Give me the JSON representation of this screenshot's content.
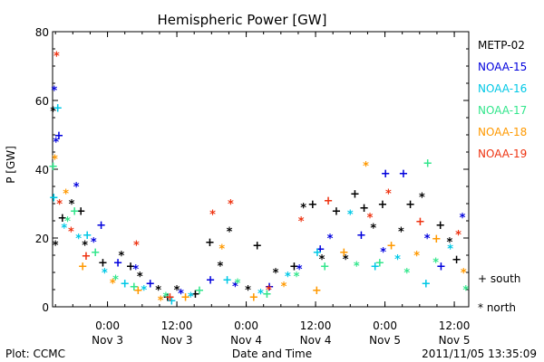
{
  "chart_data": {
    "type": "scatter",
    "title": "Hemispheric Power [GW]",
    "ylabel": "P [GW]",
    "xlabel": "Date and Time",
    "ylim": [
      0,
      80
    ],
    "yticks": [
      0,
      20,
      40,
      60,
      80
    ],
    "xlim": [
      "2011-11-02 14:30",
      "2011-11-05 14:30"
    ],
    "xticks": [
      {
        "time": "2011-11-03 00:00",
        "line1": "0:00",
        "line2": "Nov 3"
      },
      {
        "time": "2011-11-03 12:00",
        "line1": "12:00",
        "line2": "Nov 3"
      },
      {
        "time": "2011-11-04 00:00",
        "line1": "0:00",
        "line2": "Nov 4"
      },
      {
        "time": "2011-11-04 12:00",
        "line1": "12:00",
        "line2": "Nov 4"
      },
      {
        "time": "2011-11-05 00:00",
        "line1": "0:00",
        "line2": "Nov 5"
      },
      {
        "time": "2011-11-05 12:00",
        "line1": "12:00",
        "line2": "Nov 5"
      }
    ],
    "series": [
      {
        "name": "METP-02",
        "color": "#000000",
        "points": [
          {
            "x": "2011-11-02 14:36",
            "y": 57,
            "hemi": "north"
          },
          {
            "x": "2011-11-02 15:00",
            "y": 18,
            "hemi": "north"
          },
          {
            "x": "2011-11-02 16:12",
            "y": 26,
            "hemi": "south"
          },
          {
            "x": "2011-11-02 17:48",
            "y": 30,
            "hemi": "north"
          },
          {
            "x": "2011-11-02 19:24",
            "y": 28,
            "hemi": "south"
          },
          {
            "x": "2011-11-02 20:06",
            "y": 18,
            "hemi": "north"
          },
          {
            "x": "2011-11-02 23:12",
            "y": 13,
            "hemi": "south"
          },
          {
            "x": "2011-11-03 02:24",
            "y": 15,
            "hemi": "north"
          },
          {
            "x": "2011-11-03 04:00",
            "y": 12,
            "hemi": "south"
          },
          {
            "x": "2011-11-03 05:36",
            "y": 9,
            "hemi": "north"
          },
          {
            "x": "2011-11-03 08:48",
            "y": 5,
            "hemi": "north"
          },
          {
            "x": "2011-11-03 10:24",
            "y": 3,
            "hemi": "south"
          },
          {
            "x": "2011-11-03 12:00",
            "y": 5,
            "hemi": "north"
          },
          {
            "x": "2011-11-03 15:12",
            "y": 4,
            "hemi": "south"
          },
          {
            "x": "2011-11-03 17:42",
            "y": 19,
            "hemi": "south"
          },
          {
            "x": "2011-11-03 19:30",
            "y": 12,
            "hemi": "north"
          },
          {
            "x": "2011-11-03 21:06",
            "y": 22,
            "hemi": "north"
          },
          {
            "x": "2011-11-04 00:18",
            "y": 5,
            "hemi": "north"
          },
          {
            "x": "2011-11-04 01:54",
            "y": 18,
            "hemi": "south"
          },
          {
            "x": "2011-11-04 05:06",
            "y": 10,
            "hemi": "north"
          },
          {
            "x": "2011-11-04 08:18",
            "y": 12,
            "hemi": "south"
          },
          {
            "x": "2011-11-04 09:54",
            "y": 29,
            "hemi": "north"
          },
          {
            "x": "2011-11-04 11:30",
            "y": 30,
            "hemi": "south"
          },
          {
            "x": "2011-11-04 13:06",
            "y": 14,
            "hemi": "north"
          },
          {
            "x": "2011-11-04 15:36",
            "y": 28,
            "hemi": "south"
          },
          {
            "x": "2011-11-04 17:12",
            "y": 14,
            "hemi": "north"
          },
          {
            "x": "2011-11-04 18:48",
            "y": 33,
            "hemi": "south"
          },
          {
            "x": "2011-11-04 20:24",
            "y": 29,
            "hemi": "south"
          },
          {
            "x": "2011-11-04 22:00",
            "y": 23,
            "hemi": "north"
          },
          {
            "x": "2011-11-04 23:36",
            "y": 30,
            "hemi": "south"
          },
          {
            "x": "2011-11-05 02:48",
            "y": 22,
            "hemi": "north"
          },
          {
            "x": "2011-11-05 04:24",
            "y": 30,
            "hemi": "south"
          },
          {
            "x": "2011-11-05 06:24",
            "y": 32,
            "hemi": "north"
          },
          {
            "x": "2011-11-05 09:36",
            "y": 24,
            "hemi": "south"
          },
          {
            "x": "2011-11-05 11:12",
            "y": 19,
            "hemi": "north"
          },
          {
            "x": "2011-11-05 12:24",
            "y": 14,
            "hemi": "south"
          }
        ]
      },
      {
        "name": "NOAA-15",
        "color": "#0000dd",
        "points": [
          {
            "x": "2011-11-02 14:48",
            "y": 63,
            "hemi": "north"
          },
          {
            "x": "2011-11-02 15:06",
            "y": 48,
            "hemi": "north"
          },
          {
            "x": "2011-11-02 15:36",
            "y": 50,
            "hemi": "south"
          },
          {
            "x": "2011-11-02 18:36",
            "y": 35,
            "hemi": "north"
          },
          {
            "x": "2011-11-02 21:36",
            "y": 19,
            "hemi": "north"
          },
          {
            "x": "2011-11-02 22:54",
            "y": 24,
            "hemi": "south"
          },
          {
            "x": "2011-11-03 01:48",
            "y": 13,
            "hemi": "south"
          },
          {
            "x": "2011-11-03 04:54",
            "y": 11,
            "hemi": "north"
          },
          {
            "x": "2011-11-03 07:24",
            "y": 7,
            "hemi": "south"
          },
          {
            "x": "2011-11-03 12:42",
            "y": 4,
            "hemi": "north"
          },
          {
            "x": "2011-11-03 17:48",
            "y": 8,
            "hemi": "south"
          },
          {
            "x": "2011-11-03 22:06",
            "y": 6,
            "hemi": "north"
          },
          {
            "x": "2011-11-04 04:00",
            "y": 6,
            "hemi": "south"
          },
          {
            "x": "2011-11-04 09:12",
            "y": 11,
            "hemi": "north"
          },
          {
            "x": "2011-11-04 12:48",
            "y": 17,
            "hemi": "south"
          },
          {
            "x": "2011-11-04 14:30",
            "y": 20,
            "hemi": "north"
          },
          {
            "x": "2011-11-04 19:54",
            "y": 21,
            "hemi": "south"
          },
          {
            "x": "2011-11-04 23:42",
            "y": 16,
            "hemi": "north"
          },
          {
            "x": "2011-11-05 00:06",
            "y": 39,
            "hemi": "south"
          },
          {
            "x": "2011-11-05 03:12",
            "y": 39,
            "hemi": "south"
          },
          {
            "x": "2011-11-05 07:18",
            "y": 20,
            "hemi": "north"
          },
          {
            "x": "2011-11-05 09:42",
            "y": 12,
            "hemi": "south"
          },
          {
            "x": "2011-11-05 13:24",
            "y": 26,
            "hemi": "north"
          }
        ]
      },
      {
        "name": "NOAA-16",
        "color": "#00c8e6",
        "points": [
          {
            "x": "2011-11-02 14:42",
            "y": 32,
            "hemi": "south"
          },
          {
            "x": "2011-11-02 15:24",
            "y": 58,
            "hemi": "south"
          },
          {
            "x": "2011-11-02 16:30",
            "y": 23,
            "hemi": "north"
          },
          {
            "x": "2011-11-02 19:00",
            "y": 20,
            "hemi": "north"
          },
          {
            "x": "2011-11-02 20:30",
            "y": 21,
            "hemi": "south"
          },
          {
            "x": "2011-11-02 23:30",
            "y": 10,
            "hemi": "north"
          },
          {
            "x": "2011-11-03 03:00",
            "y": 7,
            "hemi": "south"
          },
          {
            "x": "2011-11-03 06:18",
            "y": 5,
            "hemi": "north"
          },
          {
            "x": "2011-11-03 11:06",
            "y": 2,
            "hemi": "south"
          },
          {
            "x": "2011-11-03 14:24",
            "y": 3,
            "hemi": "north"
          },
          {
            "x": "2011-11-03 20:42",
            "y": 8,
            "hemi": "south"
          },
          {
            "x": "2011-11-04 02:30",
            "y": 4,
            "hemi": "north"
          },
          {
            "x": "2011-11-04 07:12",
            "y": 9,
            "hemi": "north"
          },
          {
            "x": "2011-11-04 12:18",
            "y": 16,
            "hemi": "south"
          },
          {
            "x": "2011-11-04 18:00",
            "y": 27,
            "hemi": "north"
          },
          {
            "x": "2011-11-04 22:18",
            "y": 12,
            "hemi": "south"
          },
          {
            "x": "2011-11-05 02:12",
            "y": 14,
            "hemi": "north"
          },
          {
            "x": "2011-11-05 07:06",
            "y": 7,
            "hemi": "south"
          },
          {
            "x": "2011-11-05 11:18",
            "y": 17,
            "hemi": "north"
          }
        ]
      },
      {
        "name": "NOAA-17",
        "color": "#33e68c",
        "points": [
          {
            "x": "2011-11-02 14:36",
            "y": 41,
            "hemi": "south"
          },
          {
            "x": "2011-11-02 17:06",
            "y": 25,
            "hemi": "north"
          },
          {
            "x": "2011-11-02 18:18",
            "y": 28,
            "hemi": "south"
          },
          {
            "x": "2011-11-02 21:54",
            "y": 16,
            "hemi": "south"
          },
          {
            "x": "2011-11-03 01:24",
            "y": 8,
            "hemi": "north"
          },
          {
            "x": "2011-11-03 04:36",
            "y": 6,
            "hemi": "south"
          },
          {
            "x": "2011-11-03 10:06",
            "y": 3,
            "hemi": "north"
          },
          {
            "x": "2011-11-03 15:54",
            "y": 5,
            "hemi": "south"
          },
          {
            "x": "2011-11-03 22:30",
            "y": 7,
            "hemi": "north"
          },
          {
            "x": "2011-11-04 03:36",
            "y": 4,
            "hemi": "south"
          },
          {
            "x": "2011-11-04 08:42",
            "y": 9,
            "hemi": "north"
          },
          {
            "x": "2011-11-04 13:36",
            "y": 12,
            "hemi": "south"
          },
          {
            "x": "2011-11-04 19:06",
            "y": 12,
            "hemi": "north"
          },
          {
            "x": "2011-11-04 23:06",
            "y": 13,
            "hemi": "south"
          },
          {
            "x": "2011-11-05 03:48",
            "y": 10,
            "hemi": "north"
          },
          {
            "x": "2011-11-05 07:24",
            "y": 42,
            "hemi": "south"
          },
          {
            "x": "2011-11-05 08:48",
            "y": 13,
            "hemi": "north"
          },
          {
            "x": "2011-11-05 14:00",
            "y": 5,
            "hemi": "north"
          }
        ]
      },
      {
        "name": "NOAA-18",
        "color": "#ff9900",
        "points": [
          {
            "x": "2011-11-02 14:54",
            "y": 43,
            "hemi": "north"
          },
          {
            "x": "2011-11-02 16:48",
            "y": 33,
            "hemi": "north"
          },
          {
            "x": "2011-11-02 19:42",
            "y": 12,
            "hemi": "south"
          },
          {
            "x": "2011-11-03 00:54",
            "y": 7,
            "hemi": "north"
          },
          {
            "x": "2011-11-03 05:18",
            "y": 5,
            "hemi": "south"
          },
          {
            "x": "2011-11-03 09:12",
            "y": 2,
            "hemi": "north"
          },
          {
            "x": "2011-11-03 13:30",
            "y": 3,
            "hemi": "south"
          },
          {
            "x": "2011-11-03 19:48",
            "y": 17,
            "hemi": "north"
          },
          {
            "x": "2011-11-04 01:18",
            "y": 3,
            "hemi": "south"
          },
          {
            "x": "2011-11-04 06:30",
            "y": 6,
            "hemi": "north"
          },
          {
            "x": "2011-11-04 12:12",
            "y": 5,
            "hemi": "south"
          },
          {
            "x": "2011-11-04 16:54",
            "y": 16,
            "hemi": "south"
          },
          {
            "x": "2011-11-04 20:42",
            "y": 41,
            "hemi": "north"
          },
          {
            "x": "2011-11-05 01:06",
            "y": 18,
            "hemi": "south"
          },
          {
            "x": "2011-11-05 05:30",
            "y": 15,
            "hemi": "north"
          },
          {
            "x": "2011-11-05 08:54",
            "y": 20,
            "hemi": "south"
          },
          {
            "x": "2011-11-05 13:36",
            "y": 10,
            "hemi": "north"
          }
        ]
      },
      {
        "name": "NOAA-19",
        "color": "#ee3311",
        "points": [
          {
            "x": "2011-11-02 15:12",
            "y": 73,
            "hemi": "north"
          },
          {
            "x": "2011-11-02 15:42",
            "y": 30,
            "hemi": "north"
          },
          {
            "x": "2011-11-02 17:42",
            "y": 22,
            "hemi": "north"
          },
          {
            "x": "2011-11-02 20:18",
            "y": 15,
            "hemi": "south"
          },
          {
            "x": "2011-11-03 05:00",
            "y": 18,
            "hemi": "north"
          },
          {
            "x": "2011-11-03 10:48",
            "y": 3,
            "hemi": "south"
          },
          {
            "x": "2011-11-03 18:12",
            "y": 27,
            "hemi": "north"
          },
          {
            "x": "2011-11-03 21:18",
            "y": 30,
            "hemi": "north"
          },
          {
            "x": "2011-11-04 03:54",
            "y": 5,
            "hemi": "north"
          },
          {
            "x": "2011-11-04 09:30",
            "y": 25,
            "hemi": "north"
          },
          {
            "x": "2011-11-04 14:12",
            "y": 31,
            "hemi": "south"
          },
          {
            "x": "2011-11-04 21:24",
            "y": 26,
            "hemi": "north"
          },
          {
            "x": "2011-11-05 00:36",
            "y": 33,
            "hemi": "north"
          },
          {
            "x": "2011-11-05 06:06",
            "y": 25,
            "hemi": "south"
          },
          {
            "x": "2011-11-05 12:42",
            "y": 21,
            "hemi": "north"
          }
        ]
      }
    ],
    "hemisphere_key": [
      {
        "symbol": "+",
        "label": "south"
      },
      {
        "symbol": "*",
        "label": "north"
      }
    ],
    "legend_position": "right",
    "grid": false
  },
  "footer": {
    "left": "Plot: CCMC",
    "center": "Date and Time",
    "right": "2011/11/05 13:35:09"
  }
}
